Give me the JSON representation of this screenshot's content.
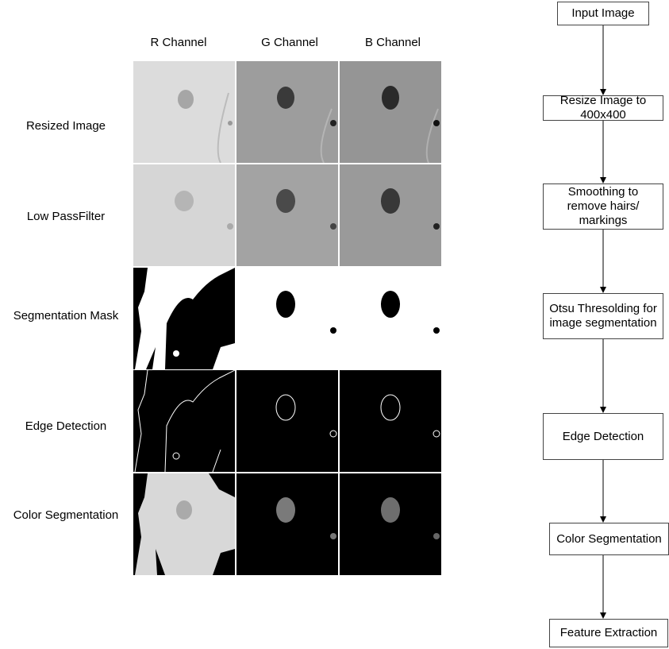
{
  "grid": {
    "columns": [
      "R Channel",
      "G Channel",
      "B Channel"
    ],
    "rows": [
      "Resized Image",
      "Low PassFilter",
      "Segmentation Mask",
      "Edge Detection",
      "Color Segmentation"
    ]
  },
  "flowchart": {
    "steps": [
      "Input Image",
      "Resize Image to 400x400",
      "Smoothing to remove hairs/ markings",
      "Otsu Thresolding for image segmentation",
      "Edge Detection",
      "Color Segmentation",
      "Feature Extraction"
    ]
  }
}
